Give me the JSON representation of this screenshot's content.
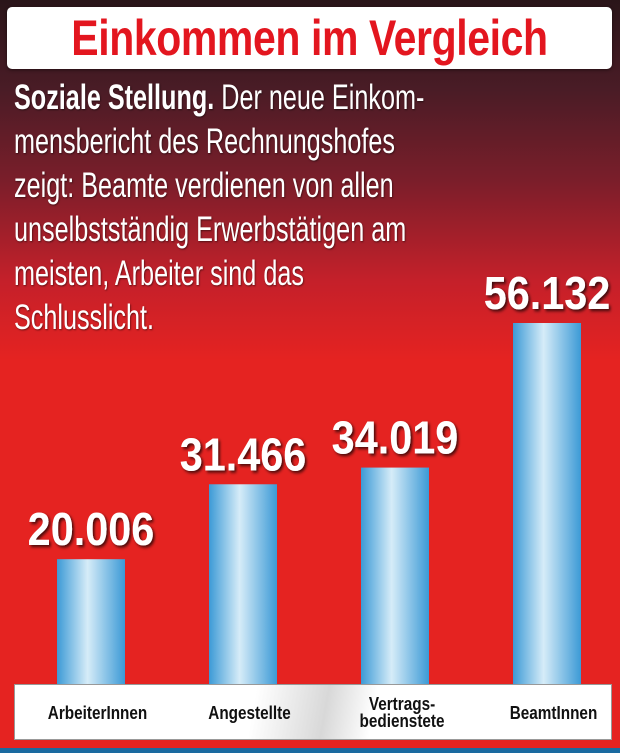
{
  "header": {
    "title": "Einkommen im Vergleich"
  },
  "intro": {
    "lead": "Soziale Stellung.",
    "lines": [
      "Der neue Einkom-",
      "mensbericht des Rechnungshofes",
      "zeigt: Beamte verdienen von allen",
      "unselbstständig Erwerbstätigen am",
      "meisten, Arbeiter sind das",
      "Schlusslicht."
    ]
  },
  "colors": {
    "background": "#e52321",
    "title": "#e3161f",
    "bar": "#5ab0e2"
  },
  "chart_data": {
    "type": "bar",
    "title": "Einkommen im Vergleich",
    "categories": [
      "ArbeiterInnen",
      "Angestellte",
      "Vertrags-\nbedienstete",
      "BeamtInnen"
    ],
    "values": [
      20006,
      31466,
      34019,
      56132
    ],
    "value_labels": [
      "20.006",
      "31.466",
      "34.019",
      "56.132"
    ],
    "xlabel": "",
    "ylabel": "",
    "ylim": [
      0,
      56132
    ],
    "grid": false
  }
}
